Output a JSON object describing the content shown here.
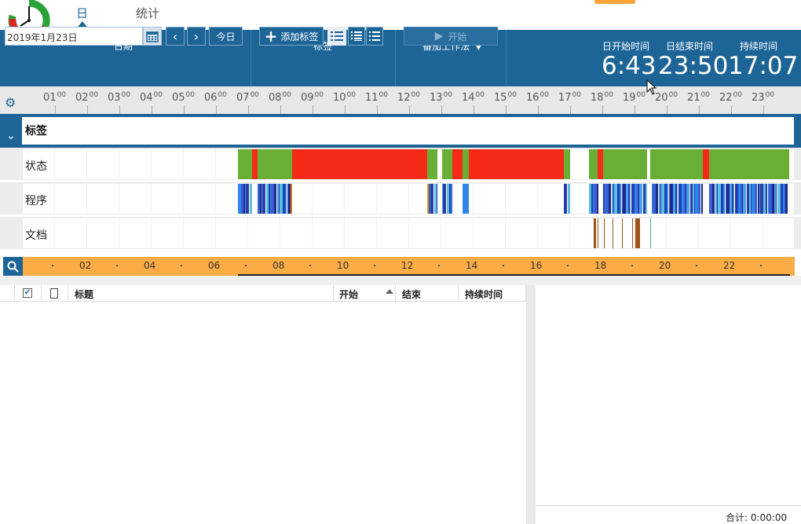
{
  "tabs": {
    "day": "日",
    "stats": "统计"
  },
  "date_section": {
    "title": "日期",
    "value": "2019年1月23日",
    "today_label": "今日"
  },
  "tags_section": {
    "title": "标签",
    "add_label": "添加标签"
  },
  "pomodoro_section": {
    "title": "番茄工作法",
    "start_label": "开始"
  },
  "times": {
    "start_title": "日开始时间",
    "start_value": "6:43",
    "end_title": "日结束时间",
    "end_value": "23:50",
    "duration_title": "持续时间",
    "duration_value": "17:07"
  },
  "ruler_hours": [
    "01",
    "02",
    "03",
    "04",
    "05",
    "06",
    "07",
    "08",
    "09",
    "10",
    "11",
    "12",
    "13",
    "14",
    "15",
    "16",
    "17",
    "18",
    "19",
    "20",
    "21",
    "22",
    "23"
  ],
  "ruler_minutes": "00",
  "tags_header": "标签",
  "lanes": {
    "status": "状态",
    "program": "程序",
    "document": "文档"
  },
  "scrub_ticks": [
    "02",
    "04",
    "06",
    "08",
    "10",
    "12",
    "14",
    "16",
    "18",
    "20",
    "22"
  ],
  "table": {
    "title_col": "标题",
    "start_col": "开始",
    "end_col": "结束",
    "duration_col": "持续时间"
  },
  "total_label": "合计: 0:00:00",
  "colors": {
    "accent": "#1d6497",
    "active_green": "#6aaf35",
    "idle_red": "#f52a18",
    "scrub_orange": "#fbac45"
  },
  "icons": [
    "clock-logo-icon",
    "calendar-icon",
    "chevron-left-icon",
    "chevron-right-icon",
    "plus-icon",
    "list-view-icon",
    "gear-icon",
    "chevron-down-icon",
    "search-icon",
    "checkbox-icon",
    "document-icon",
    "sort-asc-icon",
    "play-icon",
    "dropdown-icon"
  ]
}
